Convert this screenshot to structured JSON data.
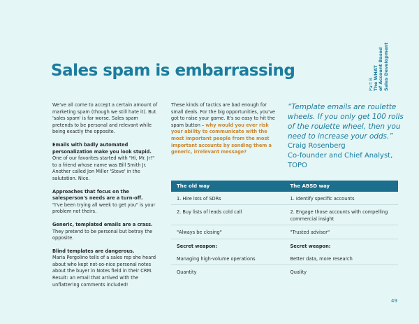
{
  "header": {
    "title": "Sales spam is embarrassing",
    "section": [
      "Part B",
      "The WHAT",
      "of Account Based",
      "Sales Development"
    ]
  },
  "column1": [
    {
      "lead": null,
      "text": "We've all come to accept a certain amount of marketing spam (though we still hate it). But 'sales spam' is far worse. Sales spam pretends to be personal and relevant while being exactly the opposite."
    },
    {
      "lead": "Emails with badly automated personalization make you look stupid.",
      "text": "One of our favorites started with \"Hi, Mr. Jr!\" to a friend whose name was Bill Smith Jr. Another called Jon Miller 'Steve' in the salutation. Nice."
    },
    {
      "lead": "Approaches that focus on the salesperson's needs are a turn-off.",
      "text": "\"I've been trying all week to get you\" is your problem not theirs."
    },
    {
      "lead": "Generic, templated emails are a crass.",
      "text": "They pretend to be personal but betray the opposite."
    },
    {
      "lead": "Blind templates are dangerous.",
      "text": "Maria Pergolino tells of a sales rep she heard about who kept not-so-nice personal notes about the buyer in Notes field in their CRM. Result: an email that arrived with the unflattering comments included!"
    }
  ],
  "column2": {
    "text": "These kinds of tactics are bad enough for small deals. For the big opportunities, you've got to raise your game. It's so easy to hit the spam button – ",
    "highlight": "why would you ever risk your ability to communicate with the most important people from the most important accounts by sending them a generic, irrelevant message?"
  },
  "quote": {
    "text": "“Template emails are roulette wheels. If you only get 100 rolls of the roulette wheel, then you need to increase your odds.”",
    "author": "Craig Rosenberg",
    "role": "Co-founder and Chief Analyst, TOPO"
  },
  "table": {
    "headers": [
      "The old way",
      "The ABSD way"
    ],
    "rows": [
      [
        "1. Hire lots of SDRs",
        "1. Identify specific accounts"
      ],
      [
        "2. Buy lists of leads cold call",
        "2. Engage those accounts with compelling commercial insight"
      ],
      [
        "\"Always be closing\"",
        "\"Trusted advisor\""
      ],
      [
        "Secret weapon:",
        "Secret weapon:"
      ],
      [
        "Managing high-volume operations",
        "Better data, more research"
      ],
      [
        "Quantity",
        "Quality"
      ]
    ]
  },
  "footer": {
    "page": "49"
  }
}
